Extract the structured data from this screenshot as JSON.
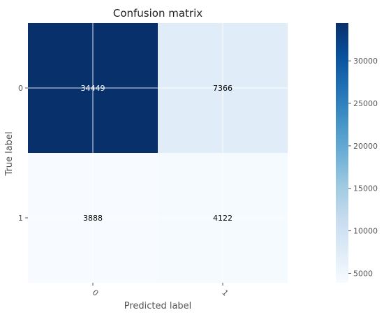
{
  "chart_data": {
    "type": "heatmap",
    "title": "Confusion matrix",
    "xlabel": "Predicted label",
    "ylabel": "True label",
    "x_categories": [
      "0",
      "1"
    ],
    "y_categories": [
      "0",
      "1"
    ],
    "values": [
      [
        34449,
        7366
      ],
      [
        3888,
        4122
      ]
    ],
    "value_labels": [
      [
        "34449",
        "7366"
      ],
      [
        "3888",
        "4122"
      ]
    ],
    "colormap": "Blues",
    "colormap_stops": [
      "#f7fbff",
      "#deebf7",
      "#c6dbef",
      "#9ecae1",
      "#6baed6",
      "#4292c6",
      "#2171b5",
      "#08519c",
      "#08306b"
    ],
    "grid": true,
    "colorbar": {
      "range": [
        3888,
        34449
      ],
      "ticks": [
        5000,
        10000,
        15000,
        20000,
        25000,
        30000
      ],
      "tick_labels": [
        "5000",
        "10000",
        "15000",
        "20000",
        "25000",
        "30000"
      ]
    }
  }
}
